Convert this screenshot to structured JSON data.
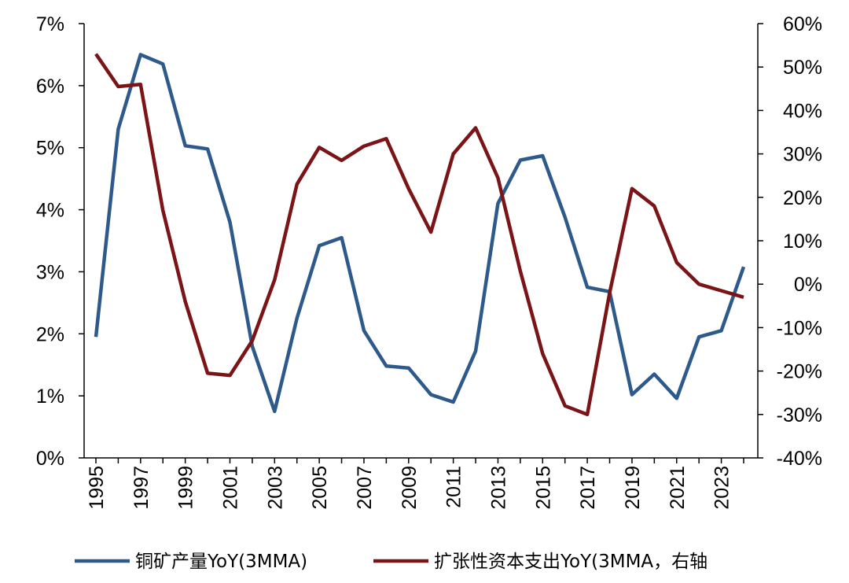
{
  "chart_data": {
    "type": "line",
    "title": "",
    "xlabel": "",
    "x": [
      1995,
      1996,
      1997,
      1998,
      1999,
      2000,
      2001,
      2002,
      2003,
      2004,
      2005,
      2006,
      2007,
      2008,
      2009,
      2010,
      2011,
      2012,
      2013,
      2014,
      2015,
      2016,
      2017,
      2018,
      2019,
      2020,
      2021,
      2022,
      2023,
      2024
    ],
    "x_tick_labels": [
      "1995",
      "1997",
      "1999",
      "2001",
      "2003",
      "2005",
      "2007",
      "2009",
      "2011",
      "2013",
      "2015",
      "2017",
      "2019",
      "2021",
      "2023"
    ],
    "left_axis": {
      "ylim": [
        0,
        7
      ],
      "tick_labels": [
        "0%",
        "1%",
        "2%",
        "3%",
        "4%",
        "5%",
        "6%",
        "7%"
      ]
    },
    "right_axis": {
      "ylim": [
        -40,
        60
      ],
      "tick_labels": [
        "-40%",
        "-30%",
        "-20%",
        "-10%",
        "0%",
        "10%",
        "20%",
        "30%",
        "40%",
        "50%",
        "60%"
      ]
    },
    "series": [
      {
        "name": "铜矿产量YoY(3MMA)",
        "axis": "left",
        "color": "#2E5A8B",
        "values": [
          1.95,
          5.3,
          6.5,
          6.35,
          5.03,
          4.98,
          3.8,
          1.8,
          0.75,
          2.25,
          3.42,
          3.55,
          2.05,
          1.48,
          1.45,
          1.02,
          0.9,
          1.72,
          4.1,
          4.8,
          4.87,
          3.88,
          2.75,
          2.68,
          1.02,
          1.35,
          0.96,
          1.95,
          2.05,
          3.08
        ]
      },
      {
        "name": "扩张性资本支出YoY(3MMA，右轴",
        "axis": "right",
        "color": "#7B1416",
        "values": [
          53,
          45.5,
          46,
          17,
          -4,
          -20.5,
          -21,
          -13,
          1,
          23,
          31.5,
          28.5,
          31.8,
          33.5,
          22,
          12,
          30,
          36,
          24.5,
          3,
          -16,
          -28,
          -30,
          -2,
          22,
          18,
          5,
          0,
          -1.5,
          -3
        ]
      }
    ]
  }
}
